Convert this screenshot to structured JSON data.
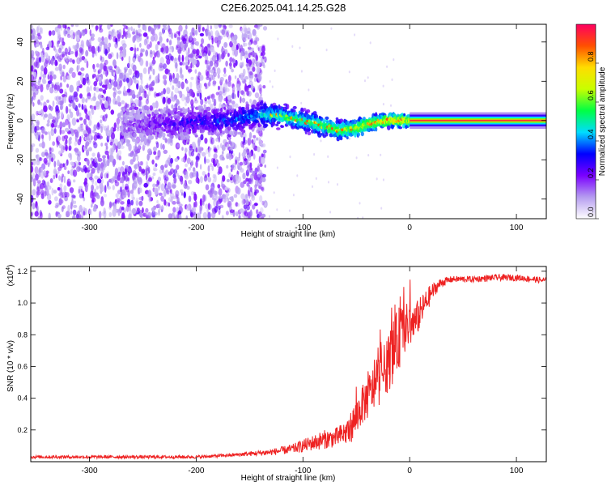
{
  "figure": {
    "title": "C2E6.2025.041.14.25.G28"
  },
  "chart_data": [
    {
      "type": "heatmap",
      "xlabel": "Height of straight line (km)",
      "ylabel": "Frequency (Hz)",
      "xlim": [
        -355,
        128
      ],
      "ylim": [
        -50,
        49
      ],
      "xticks": [
        -300,
        -200,
        -100,
        0,
        100
      ],
      "yticks": [
        -40,
        -20,
        0,
        20,
        40
      ],
      "colorbar": {
        "label": "Normalized spectral amplitude",
        "range": [
          0.0,
          1.0
        ],
        "ticks": [
          0.0,
          0.2,
          0.4,
          0.6,
          0.8
        ],
        "tick_labels": [
          "0.0",
          "0.2",
          "0.4",
          "0.6",
          "0.8"
        ],
        "colormap": [
          "#ffffff",
          "#b59cf0",
          "#7a00ff",
          "#0000ff",
          "#00ddff",
          "#00ff44",
          "#c8ff00",
          "#ffdd00",
          "#ff5000",
          "#ff0060"
        ]
      },
      "signal": {
        "center_freq_points": [
          [
            -250,
            -2
          ],
          [
            -170,
            0
          ],
          [
            -140,
            3
          ],
          [
            -120,
            2
          ],
          [
            -100,
            0
          ],
          [
            -80,
            -3
          ],
          [
            -65,
            -5
          ],
          [
            -50,
            -4
          ],
          [
            -35,
            -1
          ],
          [
            -20,
            0
          ],
          [
            0,
            0
          ],
          [
            128,
            0
          ]
        ],
        "noise_region": [
          -355,
          -135
        ],
        "steady_tone_start": 0
      },
      "grid": false
    },
    {
      "type": "line",
      "xlabel": "Height of straight line (km)",
      "ylabel": "SNR (10 * v/v)",
      "y_multiplier": "(x10^4)",
      "xlim": [
        -355,
        128
      ],
      "ylim": [
        0,
        1.23
      ],
      "xticks": [
        -300,
        -200,
        -100,
        0,
        100
      ],
      "yticks": [
        0.2,
        0.4,
        0.6,
        0.8,
        1.0,
        1.2
      ],
      "color": "#ee2222",
      "series": [
        {
          "x": [
            -355,
            -300,
            -250,
            -200,
            -170,
            -150,
            -130,
            -110,
            -100,
            -90,
            -80,
            -70,
            -60,
            -55,
            -50,
            -45,
            -40,
            -35,
            -30,
            -25,
            -20,
            -15,
            -10,
            -5,
            0,
            5,
            10,
            15,
            20,
            25,
            30,
            40,
            60,
            80,
            100,
            115,
            128
          ],
          "values": [
            0.03,
            0.03,
            0.03,
            0.03,
            0.04,
            0.05,
            0.06,
            0.08,
            0.1,
            0.12,
            0.14,
            0.15,
            0.18,
            0.22,
            0.28,
            0.35,
            0.4,
            0.45,
            0.5,
            0.56,
            0.62,
            0.7,
            0.78,
            0.84,
            0.86,
            0.88,
            0.94,
            1.0,
            1.06,
            1.1,
            1.13,
            1.15,
            1.15,
            1.16,
            1.16,
            1.15,
            1.14
          ],
          "spread": [
            0.01,
            0.01,
            0.01,
            0.01,
            0.01,
            0.015,
            0.02,
            0.03,
            0.04,
            0.05,
            0.06,
            0.06,
            0.08,
            0.1,
            0.12,
            0.12,
            0.14,
            0.14,
            0.16,
            0.16,
            0.18,
            0.2,
            0.2,
            0.16,
            0.14,
            0.12,
            0.1,
            0.08,
            0.06,
            0.04,
            0.03,
            0.02,
            0.02,
            0.02,
            0.02,
            0.02,
            0.02
          ]
        }
      ],
      "grid": false
    }
  ]
}
